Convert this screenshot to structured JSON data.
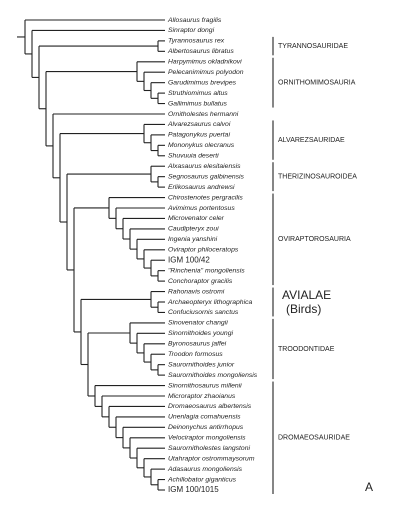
{
  "taxa": [
    "Allosaurus fragilis",
    "Sinraptor dongi",
    "Tyrannosaurus rex",
    "Albertosaurus libratus",
    "Harpymimus okladnikovi",
    "Pelecanimimus polyodon",
    "Garudimimus brevipes",
    "Struthiomimus altus",
    "Gallimimus bullatus",
    "Ornitholestes hermanni",
    "Alvarezsaurus calvoi",
    "Patagonykus puertai",
    "Mononykus olecranus",
    "Shuvuuia deserti",
    "Alxasaurus elesitaiensis",
    "Segnosaurus galbinensis",
    "Erlikosaurus andrewsi",
    "Chirostenotes pergracilis",
    "Avimimus portentosus",
    "Microvenator celer",
    "Caudipteryx zoui",
    "Ingenia yanshini",
    "Oviraptor philoceratops",
    "IGM 100/42",
    "\"Rinchenia\" mongoliensis",
    "Conchoraptor gracilis",
    "Rahonavis ostromi",
    "Archaeopteryx lithographica",
    "Confuciusornis sanctus",
    "Sinovenator changii",
    "Sinornithoides youngi",
    "Byronosaurus jaffei",
    "Troodon formosus",
    "Saurornithoides junior",
    "Saurornithoides mongoliensis",
    "Sinornithosaurus millenii",
    "Microraptor zhaoianus",
    "Dromaeosaurus albertensis",
    "Unenlagia comahuensis",
    "Deinonychus antirrhopus",
    "Velociraptor mongoliensis",
    "Saurornitholestes langstoni",
    "Utahraptor ostrommaysorum",
    "Adasaurus mongoliensis",
    "Achillobator giganticus",
    "IGM 100/1015"
  ],
  "groups": [
    "TYRANNOSAURIDAE",
    "ORNITHOMIMOSAURIA",
    "ALVAREZSAURIDAE",
    "THERIZINOSAUROIDEA",
    "OVIRAPTOROSAURIA",
    "AVIALAE",
    "(Birds)",
    "TROODONTIDAE",
    "DROMAEOSAURIDAE"
  ],
  "panel_label": "A"
}
